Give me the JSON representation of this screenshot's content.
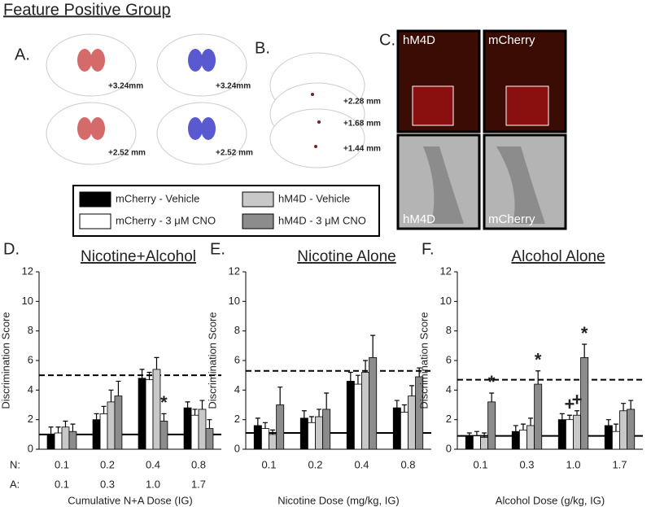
{
  "header": {
    "title": "Feature Positive Group"
  },
  "panel_a": {
    "label": "A.",
    "levels": [
      "+3.24mm",
      "+3.24mm",
      "+2.52 mm",
      "+2.52 mm"
    ]
  },
  "panel_b": {
    "label": "B.",
    "levels": [
      "+2.28 mm",
      "+1.68 mm",
      "+1.44 mm"
    ]
  },
  "panel_c": {
    "label": "C.",
    "image_labels": [
      "hM4D",
      "mCherry",
      "hM4D",
      "mCherry"
    ]
  },
  "chart_data": [
    {
      "type": "bar",
      "panel_label": "D.",
      "title": "Nicotine+Alcohol",
      "ylabel": "Discrimination Score",
      "xlabel": "Cumulative N+A Dose (IG)",
      "row_labels": [
        "N:",
        "A:"
      ],
      "categories": [
        "0.1",
        "0.2",
        "0.4",
        "0.8"
      ],
      "categories_a": [
        "0.1",
        "0.3",
        "1.0",
        "1.7"
      ],
      "ylim": [
        0,
        12
      ],
      "yticks": [
        0,
        2,
        4,
        6,
        8,
        10,
        12
      ],
      "hlines": [
        {
          "value": 5.0,
          "style": "dashed"
        },
        {
          "value": 1.0,
          "style": "solid"
        }
      ],
      "series": [
        {
          "name": "mCherry - Vehicle",
          "color": "#000000",
          "values": [
            1.0,
            2.0,
            4.8,
            2.8
          ],
          "errors": [
            0.5,
            0.4,
            0.6,
            0.4
          ]
        },
        {
          "name": "mCherry - 3 μM CNO",
          "color": "#ffffff",
          "values": [
            1.1,
            2.4,
            4.7,
            2.3
          ],
          "errors": [
            0.4,
            0.5,
            0.5,
            0.4
          ]
        },
        {
          "name": "hM4D - Vehicle",
          "color": "#c8c8c8",
          "values": [
            1.5,
            3.2,
            5.4,
            2.7
          ],
          "errors": [
            0.4,
            0.8,
            0.8,
            0.6
          ]
        },
        {
          "name": "hM4D - 3 μM CNO",
          "color": "#8c8c8c",
          "values": [
            1.2,
            3.6,
            1.9,
            1.4
          ],
          "errors": [
            0.5,
            1.0,
            0.5,
            0.6
          ]
        }
      ],
      "annotations": [
        {
          "text": "*",
          "category": 2,
          "series": 3
        }
      ]
    },
    {
      "type": "bar",
      "panel_label": "E.",
      "title": "Nicotine Alone",
      "ylabel": "Discrimination Score",
      "xlabel": "Nicotine Dose (mg/kg, IG)",
      "categories": [
        "0.1",
        "0.2",
        "0.4",
        "0.8"
      ],
      "ylim": [
        0,
        12
      ],
      "yticks": [
        0,
        2,
        4,
        6,
        8,
        10,
        12
      ],
      "hlines": [
        {
          "value": 5.3,
          "style": "dashed"
        },
        {
          "value": 1.1,
          "style": "solid"
        }
      ],
      "series": [
        {
          "name": "mCherry - Vehicle",
          "color": "#000000",
          "values": [
            1.6,
            2.1,
            4.6,
            2.8
          ],
          "errors": [
            0.5,
            0.5,
            0.6,
            0.5
          ]
        },
        {
          "name": "mCherry - 3 μM CNO",
          "color": "#ffffff",
          "values": [
            1.4,
            1.8,
            4.4,
            2.5
          ],
          "errors": [
            0.4,
            0.4,
            0.6,
            0.5
          ]
        },
        {
          "name": "hM4D - Vehicle",
          "color": "#c8c8c8",
          "values": [
            1.0,
            2.2,
            5.2,
            3.6
          ],
          "errors": [
            0.3,
            0.5,
            0.8,
            0.7
          ]
        },
        {
          "name": "hM4D - 3 μM CNO",
          "color": "#8c8c8c",
          "values": [
            3.0,
            2.7,
            6.2,
            4.9
          ],
          "errors": [
            1.2,
            1.1,
            1.5,
            0.6
          ]
        }
      ],
      "annotations": []
    },
    {
      "type": "bar",
      "panel_label": "F.",
      "title": "Alcohol Alone",
      "ylabel": "Discrimination Score",
      "xlabel": "Alcohol Dose (g/kg, IG)",
      "categories": [
        "0.1",
        "0.3",
        "1.0",
        "1.7"
      ],
      "ylim": [
        0,
        12
      ],
      "yticks": [
        0,
        2,
        4,
        6,
        8,
        10,
        12
      ],
      "hlines": [
        {
          "value": 4.7,
          "style": "dashed"
        },
        {
          "value": 0.9,
          "style": "solid"
        }
      ],
      "series": [
        {
          "name": "mCherry - Vehicle",
          "color": "#000000",
          "values": [
            0.9,
            1.2,
            2.0,
            1.6
          ],
          "errors": [
            0.2,
            0.4,
            0.4,
            0.4
          ]
        },
        {
          "name": "mCherry - 3 μM CNO",
          "color": "#ffffff",
          "values": [
            0.9,
            1.3,
            2.0,
            1.2
          ],
          "errors": [
            0.3,
            0.4,
            0.3,
            0.5
          ]
        },
        {
          "name": "hM4D - Vehicle",
          "color": "#c8c8c8",
          "values": [
            0.8,
            1.6,
            2.3,
            2.6
          ],
          "errors": [
            0.3,
            0.5,
            0.3,
            0.5
          ]
        },
        {
          "name": "hM4D - 3 μM CNO",
          "color": "#8c8c8c",
          "values": [
            3.2,
            4.4,
            6.2,
            2.7
          ],
          "errors": [
            0.6,
            0.9,
            0.9,
            0.6
          ]
        }
      ],
      "annotations": [
        {
          "text": "*",
          "category": 0,
          "series": 3
        },
        {
          "text": "*",
          "category": 1,
          "series": 3
        },
        {
          "text": "*",
          "category": 2,
          "series": 3
        },
        {
          "text": "+",
          "category": 2,
          "series": 1
        },
        {
          "text": "+",
          "category": 2,
          "series": 2
        }
      ]
    }
  ]
}
